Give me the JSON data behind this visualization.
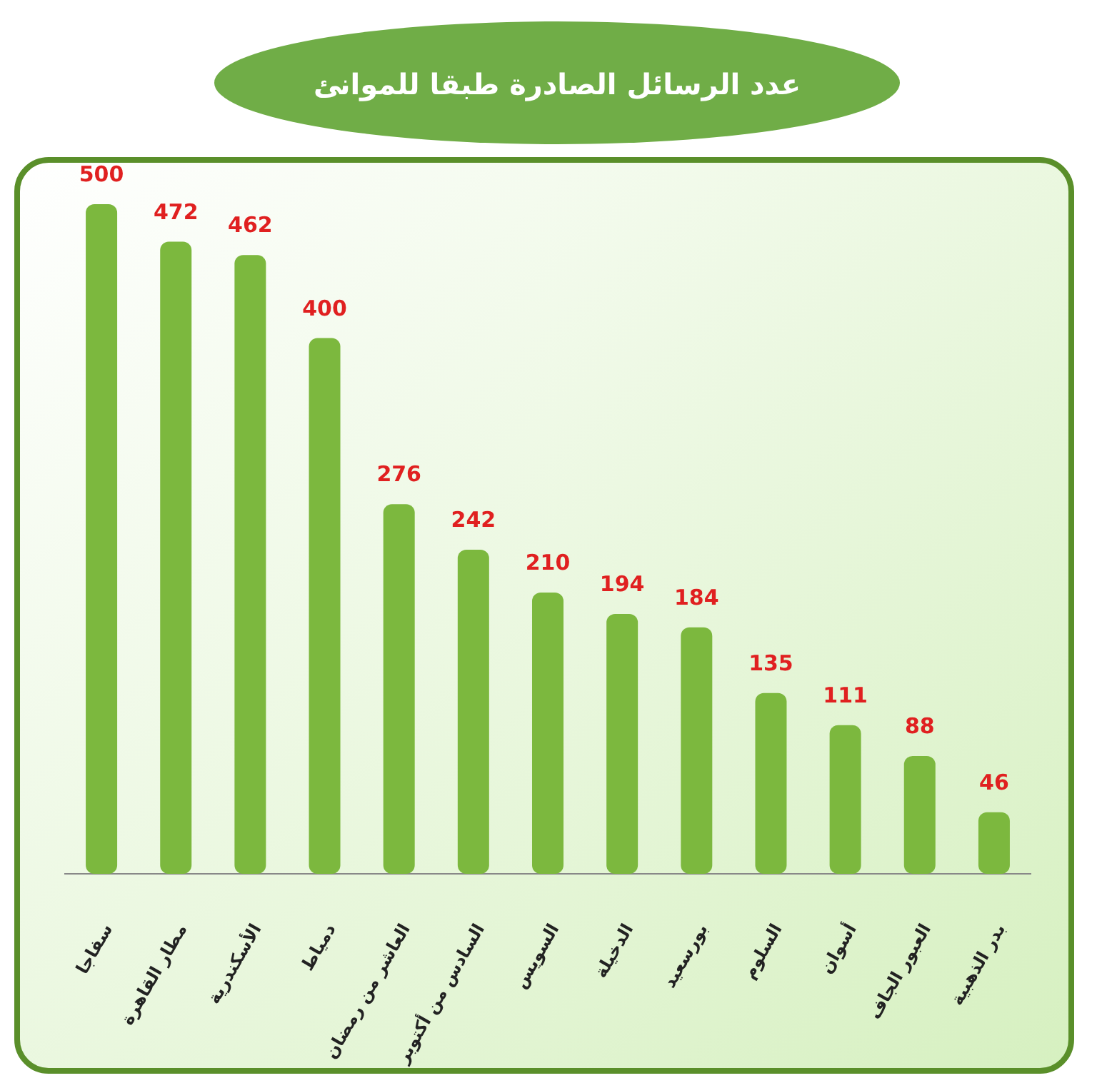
{
  "chart_data": {
    "type": "bar",
    "title": "عدد الرسائل الصادرة طبقا للموانئ",
    "categories": [
      "سفاجا",
      "مطار القاهرة",
      "الأسكندرية",
      "دمياط",
      "العاشر من رمضان",
      "السادس من أكتوبر",
      "السويس",
      "الدخيلة",
      "بورسعيد",
      "السلوم",
      "أسوان",
      "العبور الجاف",
      "بدر الذهبية"
    ],
    "values": [
      500,
      472,
      462,
      400,
      276,
      242,
      210,
      194,
      184,
      135,
      111,
      88,
      46
    ],
    "color": "#7cb83e",
    "data_labels": true
  }
}
